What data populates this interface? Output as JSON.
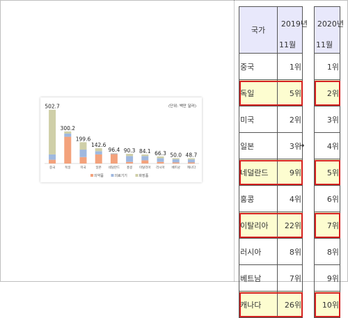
{
  "chart_data": {
    "type": "bar",
    "stacked": true,
    "unit_note": "(단위: 백만 달러)",
    "categories": [
      "중국",
      "독일",
      "미국",
      "일본",
      "네덜란드",
      "홍콩",
      "이탈리아",
      "러시아",
      "베트남",
      "캐나다"
    ],
    "totals": [
      502.7,
      300.2,
      199.6,
      142.6,
      96.4,
      90.3,
      84.1,
      66.3,
      50.0,
      48.7
    ],
    "total_labels": [
      "502.7",
      "300.2",
      "199.6",
      "142.6",
      "96.4",
      "90.3",
      "84.1",
      "66.3",
      "50.0",
      "48.7"
    ],
    "series": [
      {
        "name": "의약품",
        "color": "#f3a27c",
        "values": [
          35,
          250,
          60,
          85,
          88,
          15,
          30,
          15,
          10,
          10
        ]
      },
      {
        "name": "의료기기",
        "color": "#9fb8df",
        "values": [
          50,
          30,
          70,
          30,
          5,
          55,
          40,
          35,
          30,
          28
        ]
      },
      {
        "name": "화장품",
        "color": "#cfcfa8",
        "values": [
          417.7,
          20.2,
          69.6,
          27.6,
          3.4,
          20.3,
          14.1,
          16.3,
          10.0,
          10.7
        ]
      }
    ],
    "ylim": [
      0,
      540
    ]
  },
  "table": {
    "header_country": "국가",
    "year_2019_line1": "2019년",
    "year_2019_line2": "11월",
    "year_2020_line1": "2020년",
    "year_2020_line2": "11월",
    "arrow": "➔",
    "rows": [
      {
        "country": "중국",
        "rank2019": "1위",
        "rank2020": "1위",
        "highlight": false
      },
      {
        "country": "독일",
        "rank2019": "5위",
        "rank2020": "2위",
        "highlight": true
      },
      {
        "country": "미국",
        "rank2019": "2위",
        "rank2020": "3위",
        "highlight": false
      },
      {
        "country": "일본",
        "rank2019": "3위",
        "rank2020": "4위",
        "highlight": false
      },
      {
        "country": "네덜란드",
        "rank2019": "9위",
        "rank2020": "5위",
        "highlight": true
      },
      {
        "country": "홍콩",
        "rank2019": "4위",
        "rank2020": "6위",
        "highlight": false
      },
      {
        "country": "이탈리아",
        "rank2019": "22위",
        "rank2020": "7위",
        "highlight": true
      },
      {
        "country": "러시아",
        "rank2019": "8위",
        "rank2020": "8위",
        "highlight": false
      },
      {
        "country": "베트남",
        "rank2019": "7위",
        "rank2020": "9위",
        "highlight": false
      },
      {
        "country": "캐나다",
        "rank2019": "26위",
        "rank2020": "10위",
        "highlight": true
      }
    ]
  }
}
